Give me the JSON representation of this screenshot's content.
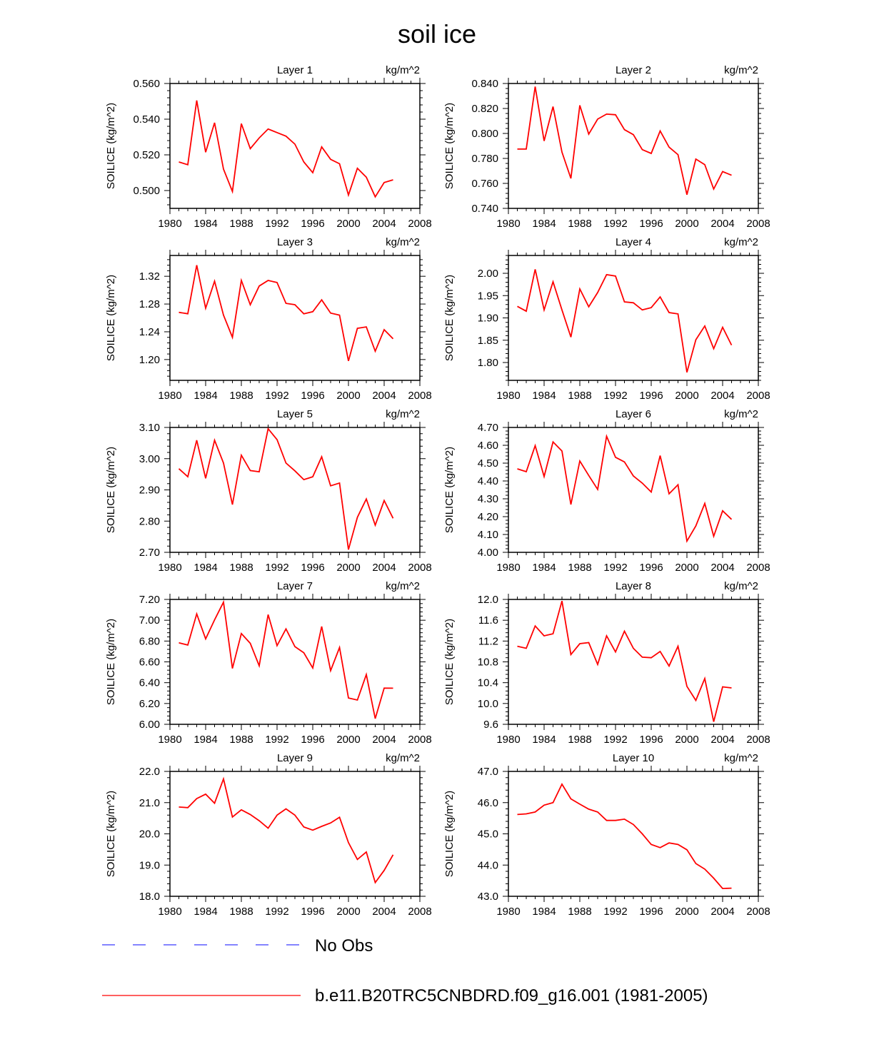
{
  "figure": {
    "title": "soil ice",
    "legend": [
      {
        "label": "No Obs",
        "style": "dashed",
        "color": "#3a3aff"
      },
      {
        "label": "b.e11.B20TRC5CNBDRD.f09_g16.001 (1981-2005)",
        "style": "solid",
        "color": "#ff0000"
      }
    ]
  },
  "chart_data": [
    {
      "type": "line",
      "title": "Layer 1",
      "units": "kg/m^2",
      "ylabel": "SOILICE  (kg/m^2)",
      "xlim": [
        1980,
        2008
      ],
      "xticks": [
        1980,
        1984,
        1988,
        1992,
        1996,
        2000,
        2004,
        2008
      ],
      "ylim": [
        0.49,
        0.56
      ],
      "yticks": [
        0.5,
        0.52,
        0.54,
        0.56
      ],
      "ydec": 3,
      "series": [
        {
          "name": "b.e11.B20TRC5CNBDRD.f09_g16.001 (1981-2005)",
          "color": "#ff0000",
          "x": [
            1981,
            1982,
            1983,
            1984,
            1985,
            1986,
            1987,
            1988,
            1989,
            1990,
            1991,
            1992,
            1993,
            1994,
            1995,
            1996,
            1997,
            1998,
            1999,
            2000,
            2001,
            2002,
            2003,
            2004,
            2005
          ],
          "y": [
            0.516,
            0.5145,
            0.5505,
            0.5215,
            0.538,
            0.512,
            0.4995,
            0.5375,
            0.5235,
            0.5295,
            0.5345,
            0.5325,
            0.5305,
            0.526,
            0.516,
            0.51,
            0.5245,
            0.5175,
            0.515,
            0.4975,
            0.5125,
            0.5075,
            0.4965,
            0.5045,
            0.506
          ]
        }
      ]
    },
    {
      "type": "line",
      "title": "Layer 2",
      "units": "kg/m^2",
      "ylabel": "SOILICE  (kg/m^2)",
      "xlim": [
        1980,
        2008
      ],
      "xticks": [
        1980,
        1984,
        1988,
        1992,
        1996,
        2000,
        2004,
        2008
      ],
      "ylim": [
        0.74,
        0.84
      ],
      "yticks": [
        0.74,
        0.76,
        0.78,
        0.8,
        0.82,
        0.84
      ],
      "ydec": 3,
      "series": [
        {
          "name": "b.e11.B20TRC5CNBDRD.f09_g16.001 (1981-2005)",
          "color": "#ff0000",
          "x": [
            1981,
            1982,
            1983,
            1984,
            1985,
            1986,
            1987,
            1988,
            1989,
            1990,
            1991,
            1992,
            1993,
            1994,
            1995,
            1996,
            1997,
            1998,
            1999,
            2000,
            2001,
            2002,
            2003,
            2004,
            2005
          ],
          "y": [
            0.7875,
            0.7875,
            0.8375,
            0.794,
            0.8215,
            0.785,
            0.764,
            0.8225,
            0.7995,
            0.8115,
            0.8155,
            0.815,
            0.803,
            0.799,
            0.787,
            0.784,
            0.802,
            0.789,
            0.783,
            0.751,
            0.7795,
            0.775,
            0.7555,
            0.7695,
            0.7665
          ]
        }
      ]
    },
    {
      "type": "line",
      "title": "Layer 3",
      "units": "kg/m^2",
      "ylabel": "SOILICE  (kg/m^2)",
      "xlim": [
        1980,
        2008
      ],
      "xticks": [
        1980,
        1984,
        1988,
        1992,
        1996,
        2000,
        2004,
        2008
      ],
      "ylim": [
        1.17,
        1.35
      ],
      "yticks": [
        1.2,
        1.24,
        1.28,
        1.32
      ],
      "ydec": 2,
      "series": [
        {
          "name": "b.e11.B20TRC5CNBDRD.f09_g16.001 (1981-2005)",
          "color": "#ff0000",
          "x": [
            1981,
            1982,
            1983,
            1984,
            1985,
            1986,
            1987,
            1988,
            1989,
            1990,
            1991,
            1992,
            1993,
            1994,
            1995,
            1996,
            1997,
            1998,
            1999,
            2000,
            2001,
            2002,
            2003,
            2004,
            2005
          ],
          "y": [
            1.268,
            1.266,
            1.336,
            1.274,
            1.313,
            1.264,
            1.232,
            1.314,
            1.279,
            1.306,
            1.314,
            1.311,
            1.281,
            1.279,
            1.266,
            1.269,
            1.286,
            1.267,
            1.264,
            1.198,
            1.245,
            1.247,
            1.212,
            1.243,
            1.23
          ]
        }
      ]
    },
    {
      "type": "line",
      "title": "Layer 4",
      "units": "kg/m^2",
      "ylabel": "SOILICE  (kg/m^2)",
      "xlim": [
        1980,
        2008
      ],
      "xticks": [
        1980,
        1984,
        1988,
        1992,
        1996,
        2000,
        2004,
        2008
      ],
      "ylim": [
        1.76,
        2.04
      ],
      "yticks": [
        1.8,
        1.85,
        1.9,
        1.95,
        2.0
      ],
      "ydec": 2,
      "series": [
        {
          "name": "b.e11.B20TRC5CNBDRD.f09_g16.001 (1981-2005)",
          "color": "#ff0000",
          "x": [
            1981,
            1982,
            1983,
            1984,
            1985,
            1986,
            1987,
            1988,
            1989,
            1990,
            1991,
            1992,
            1993,
            1994,
            1995,
            1996,
            1997,
            1998,
            1999,
            2000,
            2001,
            2002,
            2003,
            2004,
            2005
          ],
          "y": [
            1.926,
            1.915,
            2.009,
            1.918,
            1.981,
            1.918,
            1.857,
            1.965,
            1.925,
            1.957,
            1.997,
            1.994,
            1.936,
            1.934,
            1.918,
            1.923,
            1.947,
            1.912,
            1.909,
            1.778,
            1.851,
            1.882,
            1.831,
            1.879,
            1.839
          ]
        }
      ]
    },
    {
      "type": "line",
      "title": "Layer 5",
      "units": "kg/m^2",
      "ylabel": "SOILICE  (kg/m^2)",
      "xlim": [
        1980,
        2008
      ],
      "xticks": [
        1980,
        1984,
        1988,
        1992,
        1996,
        2000,
        2004,
        2008
      ],
      "ylim": [
        2.7,
        3.1
      ],
      "yticks": [
        2.7,
        2.8,
        2.9,
        3.0,
        3.1
      ],
      "ydec": 2,
      "series": [
        {
          "name": "b.e11.B20TRC5CNBDRD.f09_g16.001 (1981-2005)",
          "color": "#ff0000",
          "x": [
            1981,
            1982,
            1983,
            1984,
            1985,
            1986,
            1987,
            1988,
            1989,
            1990,
            1991,
            1992,
            1993,
            1994,
            1995,
            1996,
            1997,
            1998,
            1999,
            2000,
            2001,
            2002,
            2003,
            2004,
            2005
          ],
          "y": [
            2.968,
            2.942,
            3.059,
            2.937,
            3.059,
            2.986,
            2.853,
            3.011,
            2.962,
            2.958,
            3.096,
            3.061,
            2.986,
            2.961,
            2.933,
            2.942,
            3.006,
            2.913,
            2.922,
            2.709,
            2.812,
            2.871,
            2.787,
            2.866,
            2.809
          ]
        }
      ]
    },
    {
      "type": "line",
      "title": "Layer 6",
      "units": "kg/m^2",
      "ylabel": "SOILICE  (kg/m^2)",
      "xlim": [
        1980,
        2008
      ],
      "xticks": [
        1980,
        1984,
        1988,
        1992,
        1996,
        2000,
        2004,
        2008
      ],
      "ylim": [
        4.0,
        4.7
      ],
      "yticks": [
        4.0,
        4.1,
        4.2,
        4.3,
        4.4,
        4.5,
        4.6,
        4.7
      ],
      "ydec": 2,
      "series": [
        {
          "name": "b.e11.B20TRC5CNBDRD.f09_g16.001 (1981-2005)",
          "color": "#ff0000",
          "x": [
            1981,
            1982,
            1983,
            1984,
            1985,
            1986,
            1987,
            1988,
            1989,
            1990,
            1991,
            1992,
            1993,
            1994,
            1995,
            1996,
            1997,
            1998,
            1999,
            2000,
            2001,
            2002,
            2003,
            2004,
            2005
          ],
          "y": [
            4.468,
            4.452,
            4.598,
            4.425,
            4.619,
            4.568,
            4.268,
            4.512,
            4.431,
            4.353,
            4.651,
            4.533,
            4.507,
            4.428,
            4.388,
            4.338,
            4.542,
            4.328,
            4.379,
            4.063,
            4.148,
            4.274,
            4.09,
            4.233,
            4.185
          ]
        }
      ]
    },
    {
      "type": "line",
      "title": "Layer 7",
      "units": "kg/m^2",
      "ylabel": "SOILICE  (kg/m^2)",
      "xlim": [
        1980,
        2008
      ],
      "xticks": [
        1980,
        1984,
        1988,
        1992,
        1996,
        2000,
        2004,
        2008
      ],
      "ylim": [
        6.0,
        7.2
      ],
      "yticks": [
        6.0,
        6.2,
        6.4,
        6.6,
        6.8,
        7.0,
        7.2
      ],
      "ydec": 2,
      "series": [
        {
          "name": "b.e11.B20TRC5CNBDRD.f09_g16.001 (1981-2005)",
          "color": "#ff0000",
          "x": [
            1981,
            1982,
            1983,
            1984,
            1985,
            1986,
            1987,
            1988,
            1989,
            1990,
            1991,
            1992,
            1993,
            1994,
            1995,
            1996,
            1997,
            1998,
            1999,
            2000,
            2001,
            2002,
            2003,
            2004,
            2005
          ],
          "y": [
            6.783,
            6.762,
            7.061,
            6.821,
            7.004,
            7.174,
            6.537,
            6.872,
            6.778,
            6.562,
            7.054,
            6.756,
            6.917,
            6.747,
            6.687,
            6.541,
            6.94,
            6.516,
            6.738,
            6.253,
            6.233,
            6.478,
            6.055,
            6.348,
            6.347
          ]
        }
      ]
    },
    {
      "type": "line",
      "title": "Layer 8",
      "units": "kg/m^2",
      "ylabel": "SOILICE  (kg/m^2)",
      "xlim": [
        1980,
        2008
      ],
      "xticks": [
        1980,
        1984,
        1988,
        1992,
        1996,
        2000,
        2004,
        2008
      ],
      "ylim": [
        9.6,
        12.0
      ],
      "yticks": [
        9.6,
        10.0,
        10.4,
        10.8,
        11.2,
        11.6,
        12.0
      ],
      "ydec": 1,
      "series": [
        {
          "name": "b.e11.B20TRC5CNBDRD.f09_g16.001 (1981-2005)",
          "color": "#ff0000",
          "x": [
            1981,
            1982,
            1983,
            1984,
            1985,
            1986,
            1987,
            1988,
            1989,
            1990,
            1991,
            1992,
            1993,
            1994,
            1995,
            1996,
            1997,
            1998,
            1999,
            2000,
            2001,
            2002,
            2003,
            2004,
            2005
          ],
          "y": [
            11.1,
            11.06,
            11.49,
            11.3,
            11.34,
            11.97,
            10.94,
            11.15,
            11.17,
            10.75,
            11.3,
            10.99,
            11.39,
            11.06,
            10.89,
            10.88,
            11.0,
            10.72,
            11.1,
            10.33,
            10.06,
            10.48,
            9.65,
            10.32,
            10.3
          ]
        }
      ]
    },
    {
      "type": "line",
      "title": "Layer 9",
      "units": "kg/m^2",
      "ylabel": "SOILICE  (kg/m^2)",
      "xlim": [
        1980,
        2008
      ],
      "xticks": [
        1980,
        1984,
        1988,
        1992,
        1996,
        2000,
        2004,
        2008
      ],
      "ylim": [
        18.0,
        22.0
      ],
      "yticks": [
        18,
        19,
        20,
        21,
        22
      ],
      "ydec": 1,
      "series": [
        {
          "name": "b.e11.B20TRC5CNBDRD.f09_g16.001 (1981-2005)",
          "color": "#ff0000",
          "x": [
            1981,
            1982,
            1983,
            1984,
            1985,
            1986,
            1987,
            1988,
            1989,
            1990,
            1991,
            1992,
            1993,
            1994,
            1995,
            1996,
            1997,
            1998,
            1999,
            2000,
            2001,
            2002,
            2003,
            2004,
            2005
          ],
          "y": [
            20.86,
            20.84,
            21.13,
            21.27,
            20.98,
            21.76,
            20.54,
            20.77,
            20.62,
            20.42,
            20.18,
            20.6,
            20.8,
            20.6,
            20.22,
            20.12,
            20.24,
            20.35,
            20.53,
            19.72,
            19.18,
            19.42,
            18.44,
            18.83,
            19.33
          ]
        }
      ]
    },
    {
      "type": "line",
      "title": "Layer 10",
      "units": "kg/m^2",
      "ylabel": "SOILICE  (kg/m^2)",
      "xlim": [
        1980,
        2008
      ],
      "xticks": [
        1980,
        1984,
        1988,
        1992,
        1996,
        2000,
        2004,
        2008
      ],
      "ylim": [
        43.0,
        47.0
      ],
      "yticks": [
        43,
        44,
        45,
        46,
        47
      ],
      "ydec": 1,
      "series": [
        {
          "name": "b.e11.B20TRC5CNBDRD.f09_g16.001 (1981-2005)",
          "color": "#ff0000",
          "x": [
            1981,
            1982,
            1983,
            1984,
            1985,
            1986,
            1987,
            1988,
            1989,
            1990,
            1991,
            1992,
            1993,
            1994,
            1995,
            1996,
            1997,
            1998,
            1999,
            2000,
            2001,
            2002,
            2003,
            2004,
            2005
          ],
          "y": [
            45.62,
            45.64,
            45.7,
            45.92,
            46.0,
            46.59,
            46.12,
            45.95,
            45.79,
            45.7,
            45.43,
            45.43,
            45.47,
            45.3,
            45.0,
            44.66,
            44.56,
            44.71,
            44.66,
            44.49,
            44.05,
            43.87,
            43.58,
            43.25,
            43.26
          ]
        }
      ]
    }
  ]
}
